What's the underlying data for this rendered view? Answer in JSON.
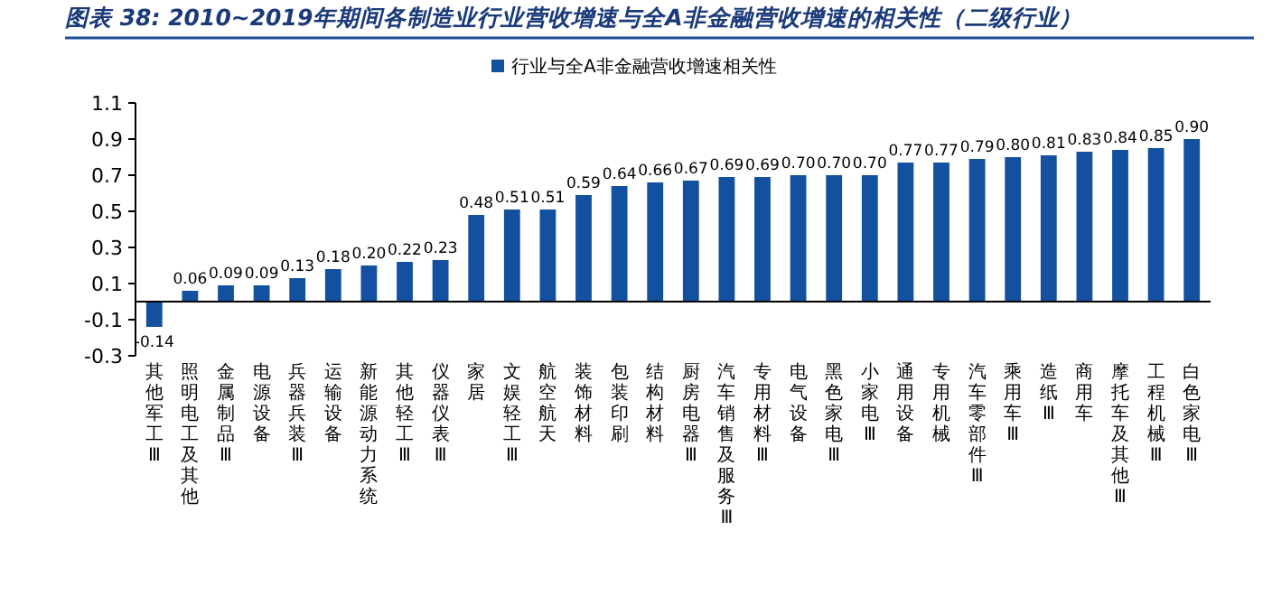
{
  "chart_data": {
    "type": "bar",
    "title": "图表 38:  2010~2019年期间各制造业行业营收增速与全A非金融营收增速的相关性（二级行业）",
    "categories": [
      "其他军工Ⅲ",
      "照明电工及其他",
      "金属制品Ⅲ",
      "电源设备",
      "兵器兵装Ⅲ",
      "运输设备",
      "新能源动力系统",
      "其他轻工Ⅲ",
      "仪器仪表Ⅲ",
      "家居",
      "文娱轻工Ⅲ",
      "航空航天",
      "装饰材料",
      "包装印刷",
      "结构材料",
      "厨房电器Ⅲ",
      "汽车销售及服务Ⅲ",
      "专用材料Ⅲ",
      "电气设备",
      "黑色家电Ⅲ",
      "小家电Ⅲ",
      "通用设备",
      "专用机械",
      "汽车零部件Ⅲ",
      "乘用车Ⅲ",
      "造纸Ⅲ",
      "商用车",
      "摩托车及其他Ⅲ",
      "工程机械Ⅲ",
      "白色家电Ⅲ"
    ],
    "series": [
      {
        "name": "行业与全A非金融营收增速相关性",
        "color": "#1450a0",
        "values": [
          -0.14,
          0.06,
          0.09,
          0.09,
          0.13,
          0.18,
          0.2,
          0.22,
          0.23,
          0.48,
          0.51,
          0.51,
          0.59,
          0.64,
          0.66,
          0.67,
          0.69,
          0.69,
          0.7,
          0.7,
          0.7,
          0.77,
          0.77,
          0.79,
          0.8,
          0.81,
          0.83,
          0.84,
          0.85,
          0.9
        ],
        "value_labels": [
          "-0.14",
          "0.06",
          "0.09",
          "0.09",
          "0.13",
          "0.18",
          "0.20",
          "0.22",
          "0.23",
          "0.48",
          "0.51",
          "0.51",
          "0.59",
          "0.64",
          "0.66",
          "0.67",
          "0.69",
          "0.69",
          "0.70",
          "0.70",
          "0.70",
          "0.77",
          "0.77",
          "0.79",
          "0.80",
          "0.81",
          "0.83",
          "0.84",
          "0.85",
          "0.90"
        ]
      }
    ],
    "ylim": [
      -0.3,
      1.1
    ],
    "yticks": [
      -0.3,
      -0.1,
      0.1,
      0.3,
      0.5,
      0.7,
      0.9,
      1.1
    ],
    "grid": false,
    "legend": "top"
  }
}
